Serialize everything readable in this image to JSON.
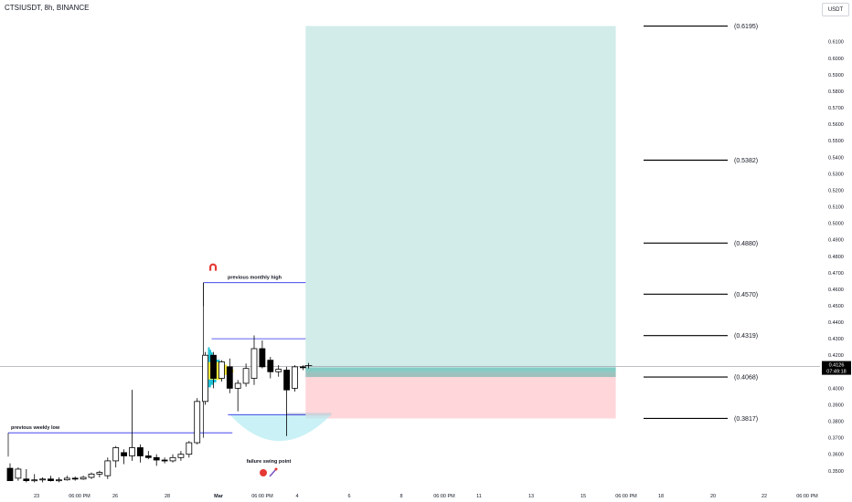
{
  "header": {
    "symbol": "CTSIUSDT, 8h, BINANCE",
    "currency": "USDT"
  },
  "colors": {
    "bull": "#ffffff",
    "bear": "#000000",
    "wick": "#000000",
    "target_zone": "#b2dfdb",
    "stop_zone": "#ffcdd2",
    "entry_band": "#26a69a",
    "range_line": "#2a2eea",
    "profile_cyan": "#22c3d6",
    "profile_yellow": "#ffeb3b",
    "price_label_bg": "#000000",
    "crosshair": "#9598a1"
  },
  "chart_data": {
    "type": "candlestick",
    "title": "CTSIUSDT, 8h, BINANCE",
    "y_axis": {
      "ylim": [
        0.346,
        0.627
      ],
      "ticks": [
        "0.6100",
        "0.6000",
        "0.5900",
        "0.5800",
        "0.5700",
        "0.5600",
        "0.5500",
        "0.5400",
        "0.5300",
        "0.5200",
        "0.5100",
        "0.5000",
        "0.4900",
        "0.4800",
        "0.4700",
        "0.4600",
        "0.4500",
        "0.4400",
        "0.4300",
        "0.4200",
        "0.4100",
        "0.4000",
        "0.3900",
        "0.3800",
        "0.3700",
        "0.3600",
        "0.3500"
      ],
      "current_price": "0.4126",
      "countdown": "07:49:18"
    },
    "x_axis": {
      "ticks": [
        "23",
        "06:00 PM",
        "26",
        "28",
        "Mar",
        "06:00 PM",
        "4",
        "6",
        "8",
        "06:00 PM",
        "11",
        "13",
        "15",
        "06:00 PM",
        "18",
        "20",
        "22",
        "06:00 PM"
      ]
    },
    "candles": [
      {
        "o": 0.3515,
        "h": 0.3545,
        "l": 0.344,
        "c": 0.344
      },
      {
        "o": 0.3455,
        "h": 0.352,
        "l": 0.344,
        "c": 0.351
      },
      {
        "o": 0.345,
        "h": 0.351,
        "l": 0.343,
        "c": 0.344
      },
      {
        "o": 0.344,
        "h": 0.348,
        "l": 0.343,
        "c": 0.3445
      },
      {
        "o": 0.3445,
        "h": 0.346,
        "l": 0.343,
        "c": 0.345
      },
      {
        "o": 0.345,
        "h": 0.347,
        "l": 0.3435,
        "c": 0.344
      },
      {
        "o": 0.344,
        "h": 0.346,
        "l": 0.343,
        "c": 0.3445
      },
      {
        "o": 0.3445,
        "h": 0.347,
        "l": 0.344,
        "c": 0.3455
      },
      {
        "o": 0.3455,
        "h": 0.3465,
        "l": 0.344,
        "c": 0.345
      },
      {
        "o": 0.345,
        "h": 0.347,
        "l": 0.3445,
        "c": 0.346
      },
      {
        "o": 0.346,
        "h": 0.349,
        "l": 0.345,
        "c": 0.348
      },
      {
        "o": 0.348,
        "h": 0.35,
        "l": 0.346,
        "c": 0.349
      },
      {
        "o": 0.347,
        "h": 0.358,
        "l": 0.345,
        "c": 0.356
      },
      {
        "o": 0.356,
        "h": 0.365,
        "l": 0.352,
        "c": 0.364
      },
      {
        "o": 0.361,
        "h": 0.363,
        "l": 0.354,
        "c": 0.359
      },
      {
        "o": 0.359,
        "h": 0.399,
        "l": 0.356,
        "c": 0.364
      },
      {
        "o": 0.364,
        "h": 0.366,
        "l": 0.355,
        "c": 0.359
      },
      {
        "o": 0.359,
        "h": 0.362,
        "l": 0.357,
        "c": 0.358
      },
      {
        "o": 0.358,
        "h": 0.36,
        "l": 0.353,
        "c": 0.3565
      },
      {
        "o": 0.3565,
        "h": 0.358,
        "l": 0.3545,
        "c": 0.356
      },
      {
        "o": 0.356,
        "h": 0.36,
        "l": 0.355,
        "c": 0.358
      },
      {
        "o": 0.358,
        "h": 0.362,
        "l": 0.356,
        "c": 0.36
      },
      {
        "o": 0.36,
        "h": 0.368,
        "l": 0.358,
        "c": 0.367
      },
      {
        "o": 0.367,
        "h": 0.394,
        "l": 0.366,
        "c": 0.392
      },
      {
        "o": 0.392,
        "h": 0.422,
        "l": 0.39,
        "c": 0.42
      },
      {
        "o": 0.42,
        "h": 0.422,
        "l": 0.4,
        "c": 0.406
      },
      {
        "o": 0.406,
        "h": 0.417,
        "l": 0.404,
        "c": 0.416
      },
      {
        "o": 0.413,
        "h": 0.418,
        "l": 0.397,
        "c": 0.4
      },
      {
        "o": 0.4,
        "h": 0.405,
        "l": 0.386,
        "c": 0.403
      },
      {
        "o": 0.403,
        "h": 0.415,
        "l": 0.401,
        "c": 0.412
      },
      {
        "o": 0.406,
        "h": 0.432,
        "l": 0.402,
        "c": 0.424
      },
      {
        "o": 0.424,
        "h": 0.429,
        "l": 0.412,
        "c": 0.413
      },
      {
        "o": 0.417,
        "h": 0.419,
        "l": 0.406,
        "c": 0.41
      },
      {
        "o": 0.41,
        "h": 0.414,
        "l": 0.407,
        "c": 0.4115
      },
      {
        "o": 0.411,
        "h": 0.413,
        "l": 0.371,
        "c": 0.399
      },
      {
        "o": 0.4,
        "h": 0.414,
        "l": 0.398,
        "c": 0.413
      },
      {
        "o": 0.413,
        "h": 0.414,
        "l": 0.411,
        "c": 0.4126
      }
    ],
    "position": {
      "entry": 0.41,
      "stop": 0.3817,
      "target": 0.6195,
      "start_index": 37,
      "end_index": 74
    },
    "target_levels": [
      "(0.6195)",
      "(0.5382)",
      "(0.4880)",
      "(0.4570)",
      "(0.4319)",
      "(0.4068)",
      "(0.3817)"
    ],
    "target_values": [
      0.6195,
      0.5382,
      0.488,
      0.457,
      0.4319,
      0.4068,
      0.3817
    ],
    "reference_lines": [
      {
        "label": "previous monthly  high",
        "price": 0.464,
        "from_index": 24,
        "to_index": 37
      },
      {
        "label": "",
        "price": 0.43,
        "from_index": 25,
        "to_index": 37
      },
      {
        "label": "",
        "price": 0.384,
        "from_index": 27,
        "to_index": 37
      },
      {
        "label": "previous weekly low",
        "price": 0.373,
        "from_index": 0,
        "to_index": 28
      }
    ],
    "annotations": {
      "failure_swing": "failure swing point"
    }
  }
}
